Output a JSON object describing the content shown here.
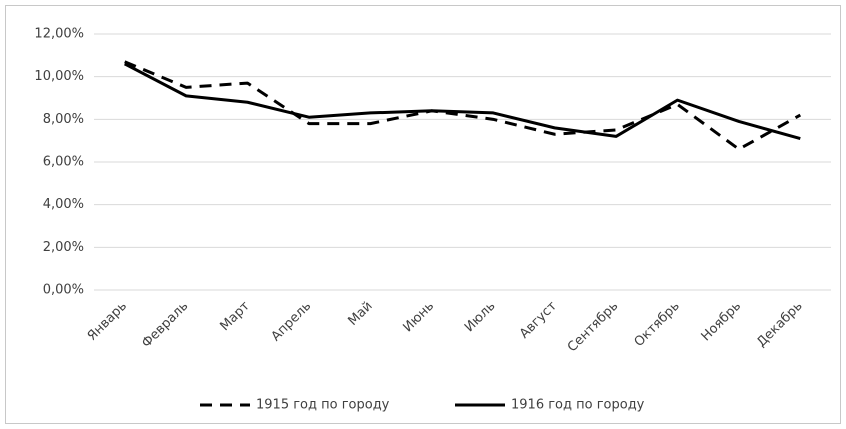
{
  "chart_data": {
    "type": "line",
    "categories": [
      "Январь",
      "Февраль",
      "Март",
      "Апрель",
      "Май",
      "Июнь",
      "Июль",
      "Август",
      "Сентябрь",
      "Октябрь",
      "Ноябрь",
      "Декабрь"
    ],
    "series": [
      {
        "name": "1915 год по городу",
        "color": "#000000",
        "line_style": "dashed",
        "values": [
          10.7,
          9.5,
          9.7,
          7.8,
          7.8,
          8.4,
          8.0,
          7.3,
          7.5,
          8.7,
          6.6,
          8.2
        ]
      },
      {
        "name": "1916 год по городу",
        "color": "#000000",
        "line_style": "solid",
        "values": [
          10.6,
          9.1,
          8.8,
          8.1,
          8.3,
          8.4,
          8.3,
          7.6,
          7.2,
          8.9,
          7.9,
          7.1
        ]
      }
    ],
    "ylim": [
      0,
      12
    ],
    "yticks": [
      {
        "value": 0,
        "label": "0,00%"
      },
      {
        "value": 2,
        "label": "2,00%"
      },
      {
        "value": 4,
        "label": "4,00%"
      },
      {
        "value": 6,
        "label": "6,00%"
      },
      {
        "value": 8,
        "label": "8,00%"
      },
      {
        "value": 10,
        "label": "10,00%"
      },
      {
        "value": 12,
        "label": "12,00%"
      }
    ],
    "grid": true,
    "legend": "bottom"
  }
}
